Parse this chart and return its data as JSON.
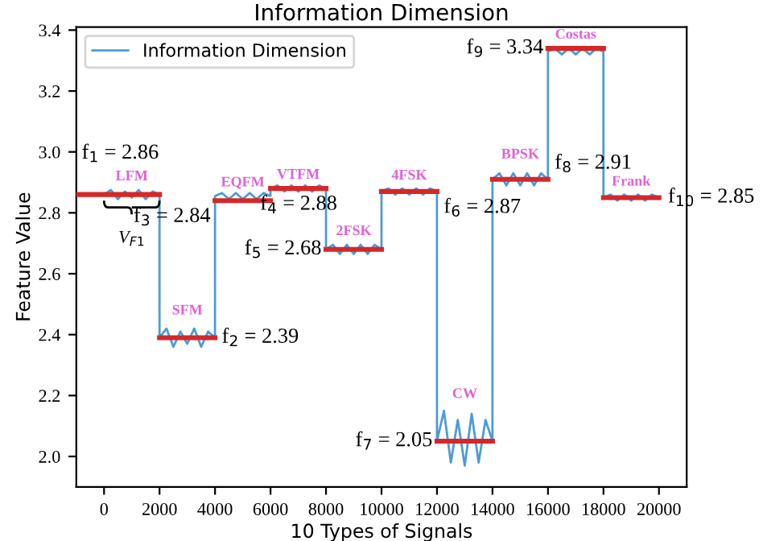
{
  "chart_data": {
    "type": "line",
    "title": "Information Dimension",
    "xlabel": "10 Types of Signals",
    "ylabel": "Feature Value",
    "xlim": [
      -1000,
      21000
    ],
    "ylim": [
      1.9,
      3.41
    ],
    "xticks": [
      0,
      2000,
      4000,
      6000,
      8000,
      10000,
      12000,
      14000,
      16000,
      18000,
      20000
    ],
    "yticks": [
      {
        "value": 2,
        "label": "2.0"
      },
      2.2,
      2.4,
      2.6,
      2.8,
      {
        "value": 3,
        "label": "3.0"
      },
      3.2,
      3.4
    ],
    "grid": false,
    "legend": "top left",
    "marker": "none",
    "line_style": "solid",
    "series": [
      {
        "name": "Information Dimension",
        "color": "#4d9bd6",
        "x": [
          0,
          250,
          500,
          750,
          1000,
          1250,
          1500,
          1750,
          1999,
          2000,
          2250,
          2500,
          2750,
          3000,
          3250,
          3500,
          3750,
          3999,
          4000,
          4250,
          4500,
          4750,
          5000,
          5250,
          5500,
          5750,
          5999,
          6000,
          6250,
          6500,
          6750,
          7000,
          7250,
          7500,
          7750,
          7999,
          8000,
          8250,
          8500,
          8750,
          9000,
          9250,
          9500,
          9750,
          9999,
          10000,
          10250,
          10500,
          10750,
          11000,
          11250,
          11500,
          11750,
          11999,
          12000,
          12250,
          12500,
          12750,
          13000,
          13250,
          13500,
          13750,
          13999,
          14000,
          14250,
          14500,
          14750,
          15000,
          15250,
          15500,
          15750,
          15999,
          16000,
          16250,
          16500,
          16750,
          17000,
          17250,
          17500,
          17750,
          17999,
          18000,
          18250,
          18500,
          18750,
          19000,
          19250,
          19500,
          19750,
          19999
        ],
        "values": [
          2.86,
          2.875,
          2.845,
          2.87,
          2.85,
          2.875,
          2.845,
          2.87,
          2.86,
          2.39,
          2.42,
          2.36,
          2.41,
          2.37,
          2.42,
          2.36,
          2.41,
          2.39,
          2.855,
          2.865,
          2.845,
          2.865,
          2.845,
          2.865,
          2.845,
          2.865,
          2.855,
          2.88,
          2.89,
          2.87,
          2.89,
          2.87,
          2.89,
          2.87,
          2.89,
          2.88,
          2.68,
          2.695,
          2.665,
          2.695,
          2.665,
          2.695,
          2.665,
          2.695,
          2.68,
          2.87,
          2.88,
          2.86,
          2.88,
          2.86,
          2.88,
          2.86,
          2.88,
          2.87,
          2.05,
          2.15,
          1.98,
          2.12,
          1.97,
          2.14,
          1.98,
          2.12,
          2.05,
          2.91,
          2.93,
          2.89,
          2.93,
          2.89,
          2.93,
          2.89,
          2.93,
          2.91,
          3.33,
          3.34,
          3.32,
          3.34,
          3.32,
          3.34,
          3.32,
          3.34,
          3.33,
          2.85,
          2.86,
          2.84,
          2.86,
          2.84,
          2.86,
          2.84,
          2.86,
          2.85
        ]
      },
      {
        "color": "#d62728",
        "x": [
          -1000,
          2000
        ],
        "values": [
          2.86,
          2.86
        ]
      },
      {
        "color": "#d62728",
        "x": [
          2000,
          4000
        ],
        "values": [
          2.39,
          2.39
        ]
      },
      {
        "color": "#d62728",
        "x": [
          4000,
          6000
        ],
        "values": [
          2.84,
          2.84
        ]
      },
      {
        "color": "#d62728",
        "x": [
          6000,
          8000
        ],
        "values": [
          2.88,
          2.88
        ]
      },
      {
        "color": "#d62728",
        "x": [
          8000,
          10000
        ],
        "values": [
          2.68,
          2.68
        ]
      },
      {
        "color": "#d62728",
        "x": [
          10000,
          12000
        ],
        "values": [
          2.87,
          2.87
        ]
      },
      {
        "color": "#d62728",
        "x": [
          12000,
          14000
        ],
        "values": [
          2.05,
          2.05
        ]
      },
      {
        "color": "#d62728",
        "x": [
          14000,
          16000
        ],
        "values": [
          2.91,
          2.91
        ]
      },
      {
        "color": "#d62728",
        "x": [
          16000,
          18000
        ],
        "values": [
          3.34,
          3.34
        ]
      },
      {
        "color": "#d62728",
        "x": [
          18000,
          20000
        ],
        "values": [
          2.85,
          2.85
        ]
      }
    ],
    "annotations": [
      {
        "text": "LFM",
        "x": 1000,
        "y": 2.86
      },
      {
        "text": "SFM",
        "x": 3000,
        "y": 2.39
      },
      {
        "text": "EQFM",
        "x": 5000,
        "y": 2.84
      },
      {
        "text": "VTFM",
        "x": 7000,
        "y": 2.88
      },
      {
        "text": "2FSK",
        "x": 9000,
        "y": 2.68
      },
      {
        "text": "4FSK",
        "x": 11000,
        "y": 2.87
      },
      {
        "text": "CW",
        "x": 13000,
        "y": 2.05
      },
      {
        "text": "BPSK",
        "x": 15000,
        "y": 2.91
      },
      {
        "text": "Costas",
        "x": 17000,
        "y": 3.34
      },
      {
        "text": "Frank",
        "x": 19000,
        "y": 2.85
      },
      "V$_{F1}$",
      {
        "text": "f$_{1}$ = 2.86",
        "x": 0,
        "y": 2.86
      },
      {
        "text": "f$_{2}$ = 2.39",
        "x": 4000,
        "y": 2.39
      },
      {
        "text": "f$_{3}$ = 2.84",
        "x": 4000,
        "y": 2.84
      },
      {
        "text": "f$_{4}$ = 2.88",
        "x": 8000,
        "y": 2.88
      },
      {
        "text": "f$_{5}$ = 2.68",
        "x": 8000,
        "y": 2.68
      },
      {
        "text": "f$_{6}$ = 2.87",
        "x": 12000,
        "y": 2.87
      },
      {
        "text": "f$_{7}$ = 2.05",
        "x": 12000,
        "y": 2.05
      },
      {
        "text": "f$_{8}$ = 2.91",
        "x": 16000,
        "y": 2.91
      },
      {
        "text": "f$_{9}$ = 3.34",
        "x": 16000,
        "y": 3.34
      },
      {
        "text": "f$_{10}$ = 2.85",
        "x": 20000,
        "y": 2.85
      }
    ]
  }
}
